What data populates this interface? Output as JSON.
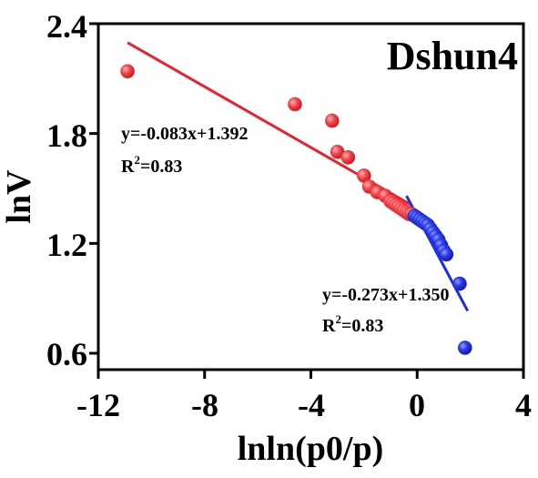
{
  "chart_data": {
    "type": "scatter",
    "title": "Dshun4",
    "xlabel": "lnln(p0/p)",
    "ylabel": "lnV",
    "xlim": [
      -12,
      4
    ],
    "ylim": [
      0.5,
      2.4
    ],
    "x_ticks": [
      -12,
      -8,
      -4,
      0,
      4
    ],
    "y_ticks": [
      0.6,
      1.2,
      1.8,
      2.4
    ],
    "x_tick_labels": [
      "-12",
      "-8",
      "-4",
      "0",
      "4"
    ],
    "y_tick_labels": [
      "0.6",
      "1.2",
      "1.8",
      "2.4"
    ],
    "grid": false,
    "series": [
      {
        "color": "#e8323a",
        "points": [
          [
            -10.9,
            2.14
          ],
          [
            -4.6,
            1.96
          ],
          [
            -3.2,
            1.87
          ],
          [
            -3.0,
            1.7
          ],
          [
            -2.6,
            1.67
          ],
          [
            -2.0,
            1.57
          ],
          [
            -1.8,
            1.51
          ],
          [
            -1.5,
            1.48
          ],
          [
            -1.2,
            1.46
          ],
          [
            -1.0,
            1.43
          ],
          [
            -0.9,
            1.42
          ],
          [
            -0.8,
            1.41
          ],
          [
            -0.7,
            1.4
          ],
          [
            -0.6,
            1.39
          ],
          [
            -0.5,
            1.38
          ],
          [
            -0.4,
            1.37
          ],
          [
            -0.3,
            1.36
          ],
          [
            -0.2,
            1.36
          ]
        ]
      },
      {
        "color": "#1f2fd6",
        "points": [
          [
            -0.1,
            1.35
          ],
          [
            0.0,
            1.34
          ],
          [
            0.1,
            1.33
          ],
          [
            0.2,
            1.32
          ],
          [
            0.3,
            1.31
          ],
          [
            0.4,
            1.3
          ],
          [
            0.5,
            1.28
          ],
          [
            0.6,
            1.26
          ],
          [
            0.7,
            1.24
          ],
          [
            0.8,
            1.22
          ],
          [
            0.9,
            1.19
          ],
          [
            1.0,
            1.16
          ],
          [
            1.1,
            1.14
          ],
          [
            1.6,
            0.98
          ],
          [
            1.8,
            0.63
          ]
        ]
      }
    ],
    "fits": [
      {
        "equation": "y=-0.083x+1.392",
        "r2_prefix": "R",
        "r2_sup": "2",
        "r2_suffix": "=0.83",
        "color": "#e8232a",
        "x_range": [
          -10.9,
          -0.2
        ]
      },
      {
        "equation": "y=-0.273x+1.350",
        "r2_prefix": "R",
        "r2_sup": "2",
        "r2_suffix": "=0.83",
        "color": "#1a2fe0",
        "x_range": [
          -0.4,
          1.9
        ]
      }
    ]
  }
}
